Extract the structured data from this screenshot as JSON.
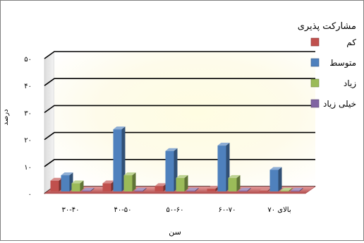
{
  "chart_data": {
    "type": "bar",
    "title": "",
    "xlabel": "سن",
    "ylabel": "درصد",
    "ylim": [
      0,
      50
    ],
    "y_ticks": [
      "۰",
      "۱۰",
      "۲۰",
      "۳۰",
      "۴۰",
      "۵۰"
    ],
    "y_tick_values": [
      0,
      10,
      20,
      30,
      40,
      50
    ],
    "categories": [
      "۳۰-۴۰",
      "۴۰-۵۰",
      "۵۰-۶۰",
      "۶۰-۷۰",
      "بالای ۷۰"
    ],
    "legend_title": "مشارکت پذیری",
    "legend_position": "right",
    "grid": true,
    "series": [
      {
        "name": "کم",
        "color": "#c0504d",
        "values": [
          4,
          3,
          2,
          1,
          0.3
        ]
      },
      {
        "name": "متوسط",
        "color": "#4f81bd",
        "values": [
          6,
          23,
          15,
          17,
          8
        ]
      },
      {
        "name": "زیاد",
        "color": "#9bbb59",
        "values": [
          3,
          6,
          5,
          5,
          0.3
        ]
      },
      {
        "name": "خیلی زیاد",
        "color": "#8064a2",
        "values": [
          0.3,
          0.3,
          0.3,
          0.3,
          0.3
        ]
      }
    ]
  }
}
